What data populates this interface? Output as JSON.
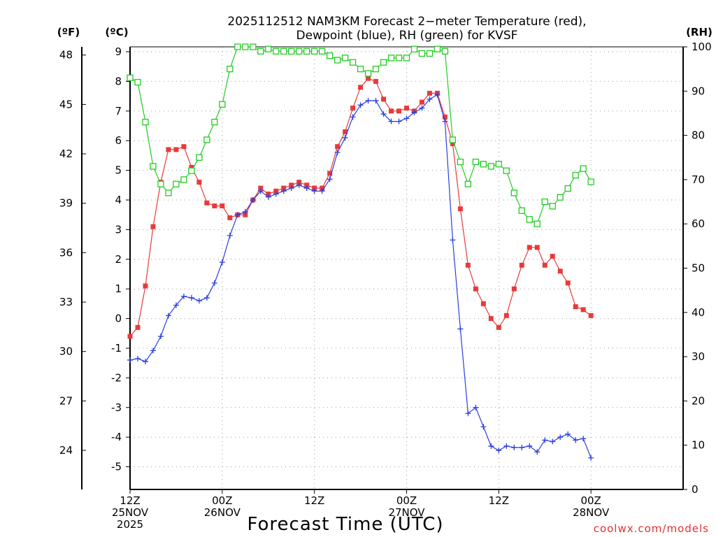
{
  "chart_data": {
    "type": "line",
    "title_lines": [
      "2025112512 NAM3KM Forecast 2−meter Temperature (red),",
      "Dewpoint (blue), RH (green) for KVSF"
    ],
    "unit_labels": {
      "left_f": "(ºF)",
      "left_c": "(ºC)",
      "right_rh": "(RH)"
    },
    "xlabel": "Forecast Time (UTC)",
    "credit": "coolwx.com/models",
    "x_range_hours": [
      0,
      36
    ],
    "x_ticks": [
      {
        "hour": 0,
        "lines": [
          "12Z",
          "25NOV",
          "2025"
        ]
      },
      {
        "hour": 6,
        "lines": [
          "00Z",
          "26NOV"
        ]
      },
      {
        "hour": 12,
        "lines": [
          "12Z"
        ]
      },
      {
        "hour": 18,
        "lines": [
          "00Z",
          "27NOV"
        ]
      },
      {
        "hour": 24,
        "lines": [
          "12Z"
        ]
      },
      {
        "hour": 30,
        "lines": [
          "00Z",
          "28NOV"
        ]
      }
    ],
    "y_celsius": {
      "min": -5.75,
      "max": 9.1,
      "ticks": [
        "9",
        "8",
        "7",
        "6",
        "5",
        "4",
        "3",
        "2",
        "1",
        "0",
        "-1",
        "-2",
        "-3",
        "-4",
        "-5"
      ]
    },
    "y_fahrenheit": {
      "ticks": [
        "48",
        "45",
        "42",
        "39",
        "36",
        "33",
        "30",
        "27",
        "24"
      ]
    },
    "y_rh": {
      "min": 0,
      "max": 100,
      "ticks": [
        "100",
        "90",
        "80",
        "70",
        "60",
        "50",
        "40",
        "30",
        "20",
        "10",
        "0"
      ]
    },
    "x_hours": [
      0,
      0.5,
      1,
      1.5,
      2,
      2.5,
      3,
      3.5,
      4,
      4.5,
      5,
      5.5,
      6,
      6.5,
      7,
      7.5,
      8,
      8.5,
      9,
      9.5,
      10,
      10.5,
      11,
      11.5,
      12,
      12.5,
      13,
      13.5,
      14,
      14.5,
      15,
      15.5,
      16,
      16.5,
      17,
      17.5,
      18,
      18.5,
      19,
      19.5,
      20,
      20.5,
      21,
      21.5,
      22,
      22.5,
      23,
      23.5,
      24,
      24.5,
      25,
      25.5,
      26,
      26.5,
      27,
      27.5,
      28,
      28.5,
      29,
      29.5,
      30
    ],
    "series": [
      {
        "name": "Temperature (°C)",
        "color": "#e83a3a",
        "marker": "filled-square",
        "axis": "celsius",
        "values": [
          -0.6,
          -0.3,
          1.1,
          3.1,
          4.6,
          5.7,
          5.7,
          5.8,
          5.1,
          4.6,
          3.9,
          3.8,
          3.8,
          3.4,
          3.5,
          3.5,
          4.0,
          4.4,
          4.2,
          4.3,
          4.4,
          4.5,
          4.6,
          4.5,
          4.4,
          4.4,
          4.9,
          5.8,
          6.3,
          7.1,
          7.8,
          8.1,
          8.0,
          7.4,
          7.0,
          7.0,
          7.1,
          7.0,
          7.3,
          7.6,
          7.6,
          6.8,
          5.9,
          3.7,
          1.8,
          1.0,
          0.5,
          0.0,
          -0.3,
          0.1,
          1.0,
          1.8,
          2.4,
          2.4,
          1.8,
          2.1,
          1.6,
          1.2,
          0.4,
          0.3,
          0.1
        ]
      },
      {
        "name": "Dewpoint (°C)",
        "color": "#2a3fe0",
        "marker": "plus",
        "axis": "celsius",
        "values": [
          -1.4,
          -1.35,
          -1.45,
          -1.08,
          -0.6,
          0.1,
          0.45,
          0.75,
          0.7,
          0.6,
          0.7,
          1.2,
          1.9,
          2.8,
          3.5,
          3.6,
          4.0,
          4.3,
          4.1,
          4.2,
          4.3,
          4.4,
          4.5,
          4.4,
          4.3,
          4.3,
          4.7,
          5.6,
          6.1,
          6.8,
          7.2,
          7.35,
          7.35,
          6.9,
          6.65,
          6.65,
          6.75,
          6.95,
          7.1,
          7.4,
          7.55,
          6.65,
          2.65,
          -0.35,
          -3.2,
          -3.0,
          -3.65,
          -4.3,
          -4.45,
          -4.3,
          -4.35,
          -4.35,
          -4.3,
          -4.5,
          -4.1,
          -4.15,
          -4.0,
          -3.9,
          -4.1,
          -4.05,
          -4.7
        ]
      },
      {
        "name": "RH (%)",
        "color": "#22cc22",
        "marker": "open-square",
        "axis": "rh",
        "values": [
          93,
          92,
          83,
          73,
          69,
          67,
          69,
          70,
          72,
          75,
          79,
          83,
          87,
          95,
          100,
          100,
          100,
          99,
          99.5,
          99,
          99,
          99,
          99,
          99,
          99,
          99,
          98,
          97,
          97.5,
          96.5,
          95,
          94,
          95,
          96.5,
          97.5,
          97.5,
          97.5,
          99.5,
          98.5,
          98.5,
          99.5,
          99,
          79,
          74,
          69,
          74,
          73.5,
          73,
          73.5,
          72,
          67,
          63,
          61,
          60,
          65,
          64,
          66,
          68,
          71,
          72.5,
          69.5
        ]
      }
    ]
  }
}
